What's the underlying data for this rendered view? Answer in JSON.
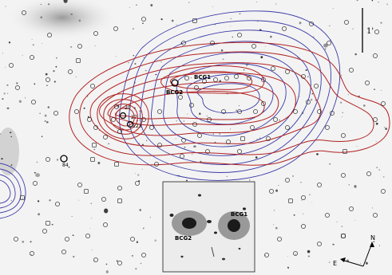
{
  "labels": {
    "bcg1": "BCG1",
    "bcg2": "BCG2",
    "bcg1_inset": "BCG1",
    "bcg2_inset": "BCG2",
    "id_84": "84",
    "id_20": "20",
    "id_27": "27",
    "id_123": "123"
  },
  "scale_bar": {
    "label": "1'"
  },
  "compass": {
    "north": "N",
    "east": "E"
  },
  "colors": {
    "background": "#f2f2f2",
    "red_contours": "#b22222",
    "blue_contours": "#3a3aa8",
    "inset_background": "#3a3a3a",
    "marker": "#000000"
  }
}
